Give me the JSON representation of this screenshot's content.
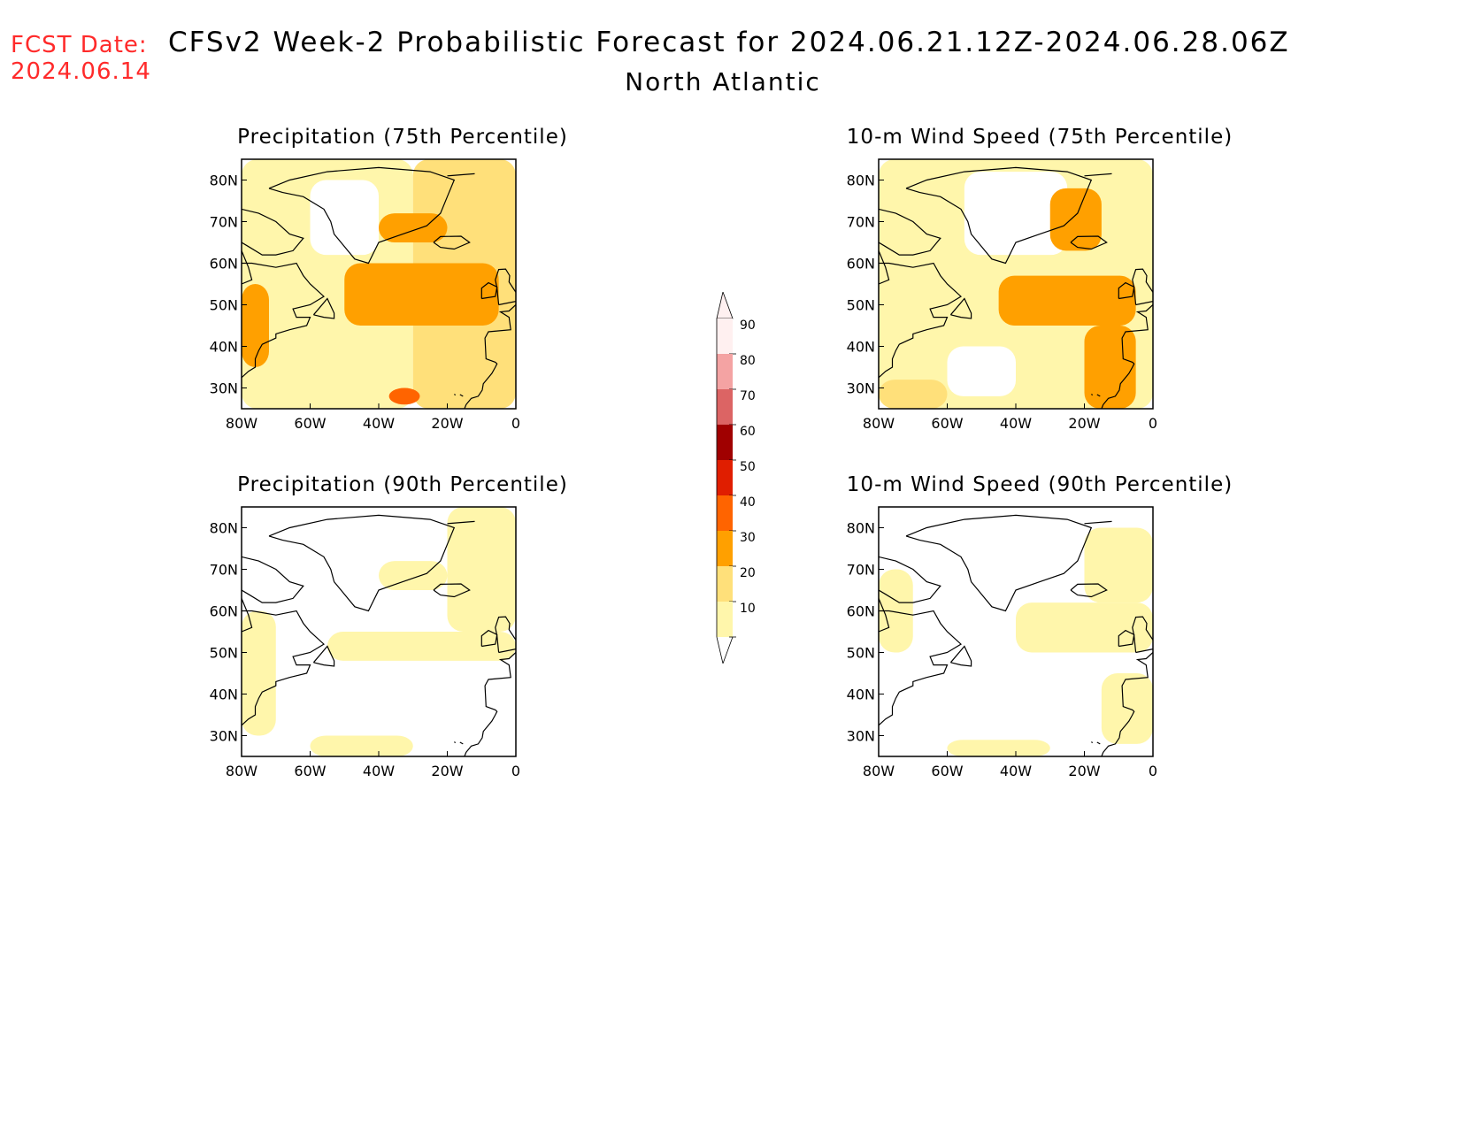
{
  "header": {
    "fcst_label": "FCST Date:",
    "fcst_date": "2024.06.14",
    "title": "CFSv2 Week-2 Probabilistic Forecast for 2024.06.21.12Z-2024.06.28.06Z",
    "region": "North Atlantic"
  },
  "axes": {
    "lat_labels": [
      "80N",
      "70N",
      "60N",
      "50N",
      "40N",
      "30N"
    ],
    "lon_labels": [
      "80W",
      "60W",
      "40W",
      "20W",
      "0"
    ],
    "lat_range": [
      25,
      85
    ],
    "lon_range": [
      -80,
      0
    ]
  },
  "colorbar": {
    "levels": [
      "90",
      "80",
      "70",
      "60",
      "50",
      "40",
      "30",
      "20",
      "10"
    ],
    "colors": [
      "#fff0f0",
      "#f4a3a3",
      "#dc6464",
      "#a00000",
      "#e01e00",
      "#ff6400",
      "#ffa000",
      "#ffe07a",
      "#fff6ab"
    ]
  },
  "panels": [
    {
      "title": "Precipitation (75th Percentile)",
      "fill": [
        {
          "lon": [
            -80,
            -30
          ],
          "lat": [
            25,
            85
          ],
          "cls": 1
        },
        {
          "lon": [
            -30,
            0
          ],
          "lat": [
            25,
            85
          ],
          "cls": 2
        },
        {
          "lon": [
            -50,
            -5
          ],
          "lat": [
            45,
            60
          ],
          "cls": 3
        },
        {
          "lon": [
            -40,
            -20
          ],
          "lat": [
            65,
            72
          ],
          "cls": 3
        },
        {
          "lon": [
            -37,
            -28
          ],
          "lat": [
            26,
            30
          ],
          "cls": 4
        },
        {
          "lon": [
            -80,
            -72
          ],
          "lat": [
            35,
            55
          ],
          "cls": 3
        },
        {
          "lon": [
            -60,
            -40
          ],
          "lat": [
            62,
            80
          ],
          "cls": 0
        }
      ]
    },
    {
      "title": "10-m Wind Speed (75th Percentile)",
      "fill": [
        {
          "lon": [
            -80,
            0
          ],
          "lat": [
            25,
            85
          ],
          "cls": 1
        },
        {
          "lon": [
            -55,
            -25
          ],
          "lat": [
            62,
            82
          ],
          "cls": 0
        },
        {
          "lon": [
            -45,
            -5
          ],
          "lat": [
            45,
            57
          ],
          "cls": 3
        },
        {
          "lon": [
            -20,
            -5
          ],
          "lat": [
            25,
            45
          ],
          "cls": 3
        },
        {
          "lon": [
            -60,
            -40
          ],
          "lat": [
            28,
            40
          ],
          "cls": 0
        },
        {
          "lon": [
            -80,
            -60
          ],
          "lat": [
            25,
            32
          ],
          "cls": 2
        },
        {
          "lon": [
            -30,
            -15
          ],
          "lat": [
            63,
            78
          ],
          "cls": 3
        }
      ]
    },
    {
      "title": "Precipitation (90th Percentile)",
      "fill": [
        {
          "lon": [
            -80,
            0
          ],
          "lat": [
            25,
            85
          ],
          "cls": 0
        },
        {
          "lon": [
            -80,
            -70
          ],
          "lat": [
            30,
            60
          ],
          "cls": 1
        },
        {
          "lon": [
            -55,
            0
          ],
          "lat": [
            48,
            55
          ],
          "cls": 1
        },
        {
          "lon": [
            -40,
            -20
          ],
          "lat": [
            65,
            72
          ],
          "cls": 1
        },
        {
          "lon": [
            -20,
            0
          ],
          "lat": [
            55,
            85
          ],
          "cls": 1
        },
        {
          "lon": [
            -60,
            -30
          ],
          "lat": [
            25,
            30
          ],
          "cls": 1
        }
      ]
    },
    {
      "title": "10-m Wind Speed (90th Percentile)",
      "fill": [
        {
          "lon": [
            -80,
            0
          ],
          "lat": [
            25,
            85
          ],
          "cls": 0
        },
        {
          "lon": [
            -40,
            0
          ],
          "lat": [
            50,
            62
          ],
          "cls": 1
        },
        {
          "lon": [
            -20,
            0
          ],
          "lat": [
            62,
            80
          ],
          "cls": 1
        },
        {
          "lon": [
            -80,
            -70
          ],
          "lat": [
            50,
            70
          ],
          "cls": 1
        },
        {
          "lon": [
            -15,
            0
          ],
          "lat": [
            28,
            45
          ],
          "cls": 1
        },
        {
          "lon": [
            -60,
            -30
          ],
          "lat": [
            25,
            29
          ],
          "cls": 1
        }
      ]
    }
  ]
}
